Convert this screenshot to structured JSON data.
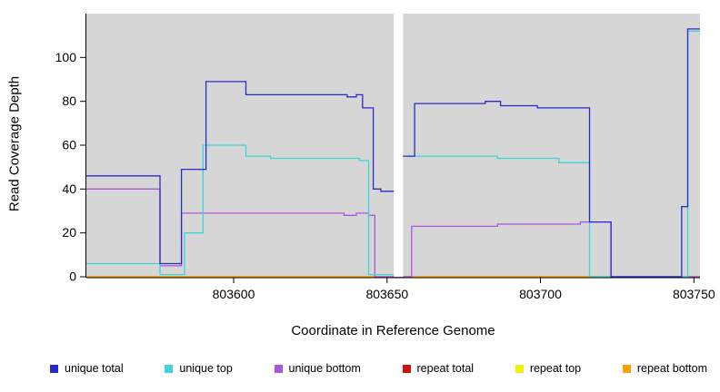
{
  "chart_data": {
    "type": "line",
    "title": "",
    "xlabel": "Coordinate in Reference Genome",
    "ylabel": "Read Coverage Depth",
    "xlim": [
      803552,
      803752
    ],
    "ylim": [
      0,
      120
    ],
    "x_ticks": [
      803600,
      803650,
      803700,
      803750
    ],
    "y_ticks": [
      0,
      20,
      40,
      60,
      80,
      100
    ],
    "plot_bg": "#d6d6d6",
    "gap_band": [
      803652.2,
      803655.2
    ],
    "grid": false,
    "legend_position": "bottom",
    "series": [
      {
        "name": "repeat top",
        "color": "#f2f200",
        "points": [
          [
            803552,
            0
          ],
          [
            803752,
            0
          ]
        ]
      },
      {
        "name": "repeat total",
        "color": "#cc1111",
        "points": [
          [
            803552,
            0
          ],
          [
            803752,
            0
          ]
        ]
      },
      {
        "name": "repeat bottom",
        "color": "#ffa000",
        "points": [
          [
            803552,
            0
          ],
          [
            803747,
            0
          ]
        ]
      },
      {
        "name": "unique bottom",
        "color": "#a858d8",
        "points": [
          [
            803552,
            40
          ],
          [
            803576,
            40
          ],
          [
            803576,
            5
          ],
          [
            803583,
            5
          ],
          [
            803583,
            29
          ],
          [
            803636,
            29
          ],
          [
            803636,
            28
          ],
          [
            803640,
            28
          ],
          [
            803640,
            29
          ],
          [
            803644,
            29
          ],
          [
            803644,
            28
          ],
          [
            803646,
            28
          ],
          [
            803646,
            0
          ],
          [
            803658,
            0
          ],
          [
            803658,
            23
          ],
          [
            803686,
            23
          ],
          [
            803686,
            24
          ],
          [
            803713,
            24
          ],
          [
            803713,
            25
          ],
          [
            803723,
            25
          ],
          [
            803723,
            0
          ],
          [
            803752,
            0
          ]
        ]
      },
      {
        "name": "unique top",
        "color": "#3ed4d8",
        "points": [
          [
            803552,
            6
          ],
          [
            803576,
            6
          ],
          [
            803576,
            1
          ],
          [
            803584,
            1
          ],
          [
            803584,
            20
          ],
          [
            803590,
            20
          ],
          [
            803590,
            60
          ],
          [
            803604,
            60
          ],
          [
            803604,
            55
          ],
          [
            803612,
            55
          ],
          [
            803612,
            54
          ],
          [
            803641,
            54
          ],
          [
            803641,
            53
          ],
          [
            803644,
            53
          ],
          [
            803644,
            1
          ],
          [
            803653.5,
            1
          ],
          [
            803653.5,
            55
          ],
          [
            803686,
            55
          ],
          [
            803686,
            54
          ],
          [
            803706,
            54
          ],
          [
            803706,
            52
          ],
          [
            803716,
            52
          ],
          [
            803716,
            0
          ],
          [
            803748,
            0
          ],
          [
            803748,
            112
          ],
          [
            803752,
            112
          ]
        ]
      },
      {
        "name": "unique total",
        "color": "#2a2acc",
        "points": [
          [
            803552,
            46
          ],
          [
            803576,
            46
          ],
          [
            803576,
            6
          ],
          [
            803583,
            6
          ],
          [
            803583,
            49
          ],
          [
            803591,
            49
          ],
          [
            803591,
            89
          ],
          [
            803604,
            89
          ],
          [
            803604,
            83
          ],
          [
            803637,
            83
          ],
          [
            803637,
            82
          ],
          [
            803640,
            82
          ],
          [
            803640,
            83
          ],
          [
            803642,
            83
          ],
          [
            803642,
            77
          ],
          [
            803645.5,
            77
          ],
          [
            803645.5,
            40
          ],
          [
            803648,
            40
          ],
          [
            803648,
            39
          ],
          [
            803653.5,
            39
          ],
          [
            803653.5,
            55
          ],
          [
            803659,
            55
          ],
          [
            803659,
            79
          ],
          [
            803682,
            79
          ],
          [
            803682,
            80
          ],
          [
            803687,
            80
          ],
          [
            803687,
            78
          ],
          [
            803699,
            78
          ],
          [
            803699,
            77
          ],
          [
            803716,
            77
          ],
          [
            803716,
            25
          ],
          [
            803723,
            25
          ],
          [
            803723,
            0
          ],
          [
            803746,
            0
          ],
          [
            803746,
            32
          ],
          [
            803748,
            32
          ],
          [
            803748,
            113
          ],
          [
            803752,
            113
          ]
        ]
      }
    ],
    "legend": [
      {
        "label": "unique total",
        "color": "#2a2acc"
      },
      {
        "label": "unique top",
        "color": "#3ed4d8"
      },
      {
        "label": "unique bottom",
        "color": "#a858d8"
      },
      {
        "label": "repeat total",
        "color": "#cc1111"
      },
      {
        "label": "repeat top",
        "color": "#f2f200"
      },
      {
        "label": "repeat bottom",
        "color": "#ffa000"
      }
    ]
  }
}
